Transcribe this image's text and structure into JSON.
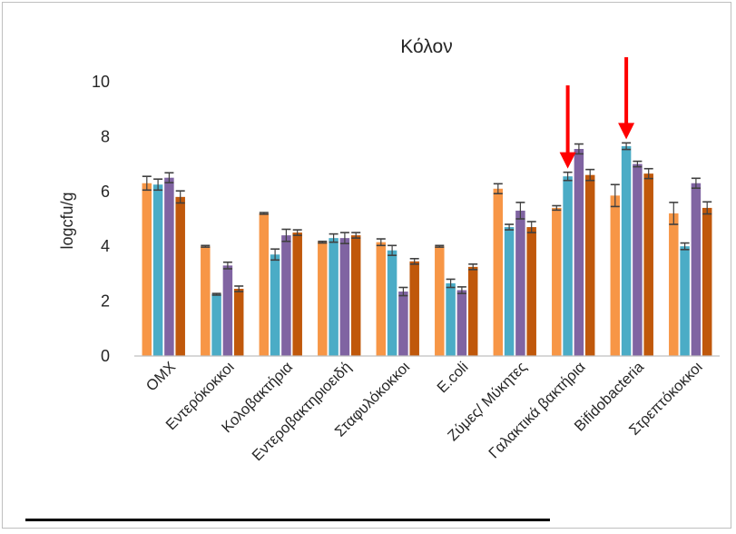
{
  "chart_data": {
    "type": "bar",
    "title": "Κόλον",
    "xlabel": "",
    "ylabel": "logcfu/g",
    "ylim": [
      0,
      10
    ],
    "yticks": [
      0,
      2,
      4,
      6,
      8,
      10
    ],
    "grid": false,
    "legend": "none",
    "categories": [
      "ΟΜΧ",
      "Εντερόκοκκοι",
      "Κολοβακτήρια",
      "Εντεροβακτηριοειδή",
      "Σταφυλόκοκκοι",
      "E.coli",
      "Ζύμες/ Μύκητες",
      "Γαλακτικά βακτήρια",
      "Bifidobacteria",
      "Στρεπτόκοκκοι"
    ],
    "series": [
      {
        "color": "#f79646",
        "values": [
          6.3,
          4.0,
          5.2,
          4.15,
          4.15,
          4.0,
          6.1,
          5.4,
          5.85,
          5.2
        ],
        "errors": [
          0.25,
          0.03,
          0.03,
          0.03,
          0.12,
          0.03,
          0.18,
          0.08,
          0.4,
          0.4
        ]
      },
      {
        "color": "#4bacc6",
        "values": [
          6.25,
          2.25,
          3.7,
          4.3,
          3.85,
          2.65,
          4.7,
          6.55,
          7.65,
          4.0
        ],
        "errors": [
          0.2,
          0.03,
          0.2,
          0.15,
          0.18,
          0.15,
          0.1,
          0.15,
          0.12,
          0.12
        ]
      },
      {
        "color": "#8064a2",
        "values": [
          6.5,
          3.3,
          4.4,
          4.3,
          2.35,
          2.4,
          5.3,
          7.55,
          7.0,
          6.3
        ],
        "errors": [
          0.18,
          0.12,
          0.22,
          0.2,
          0.15,
          0.12,
          0.3,
          0.18,
          0.1,
          0.18
        ]
      },
      {
        "color": "#c0580b",
        "values": [
          5.8,
          2.45,
          4.5,
          4.4,
          3.45,
          3.25,
          4.7,
          6.6,
          6.65,
          5.4
        ],
        "errors": [
          0.22,
          0.1,
          0.1,
          0.1,
          0.1,
          0.1,
          0.2,
          0.2,
          0.18,
          0.22
        ]
      }
    ],
    "annotations": [
      {
        "type": "arrow",
        "category": "Γαλακτικά βακτήρια",
        "color": "#ff0000"
      },
      {
        "type": "arrow",
        "category": "Bifidobacteria",
        "color": "#ff0000"
      }
    ]
  }
}
